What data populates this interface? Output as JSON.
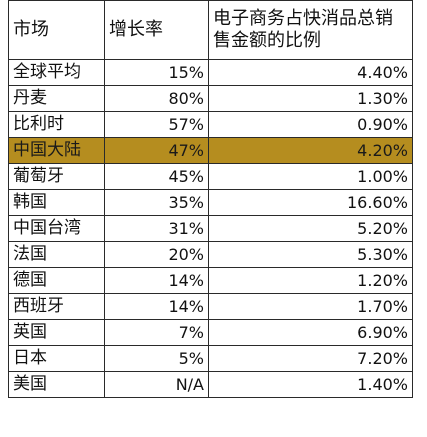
{
  "table": {
    "headers": {
      "market": "市场",
      "growth": "增长率",
      "share": "电子商务占快消品总销售金额的比例"
    },
    "highlight_color": "#b58d1f",
    "rows": [
      {
        "market": "全球平均",
        "growth": "15%",
        "share": "4.40%"
      },
      {
        "market": "丹麦",
        "growth": "80%",
        "share": "1.30%"
      },
      {
        "market": "比利时",
        "growth": "57%",
        "share": "0.90%"
      },
      {
        "market": "中国大陆",
        "growth": "47%",
        "share": "4.20%",
        "highlighted": true
      },
      {
        "market": "葡萄牙",
        "growth": "45%",
        "share": "1.00%"
      },
      {
        "market": "韩国",
        "growth": "35%",
        "share": "16.60%"
      },
      {
        "market": "中国台湾",
        "growth": "31%",
        "share": "5.20%"
      },
      {
        "market": "法国",
        "growth": "20%",
        "share": "5.30%"
      },
      {
        "market": "德国",
        "growth": "14%",
        "share": "1.20%"
      },
      {
        "market": "西班牙",
        "growth": "14%",
        "share": "1.70%"
      },
      {
        "market": "英国",
        "growth": "7%",
        "share": "6.90%"
      },
      {
        "market": "日本",
        "growth": "5%",
        "share": "7.20%"
      },
      {
        "market": "美国",
        "growth": "N/A",
        "share": "1.40%"
      }
    ]
  }
}
